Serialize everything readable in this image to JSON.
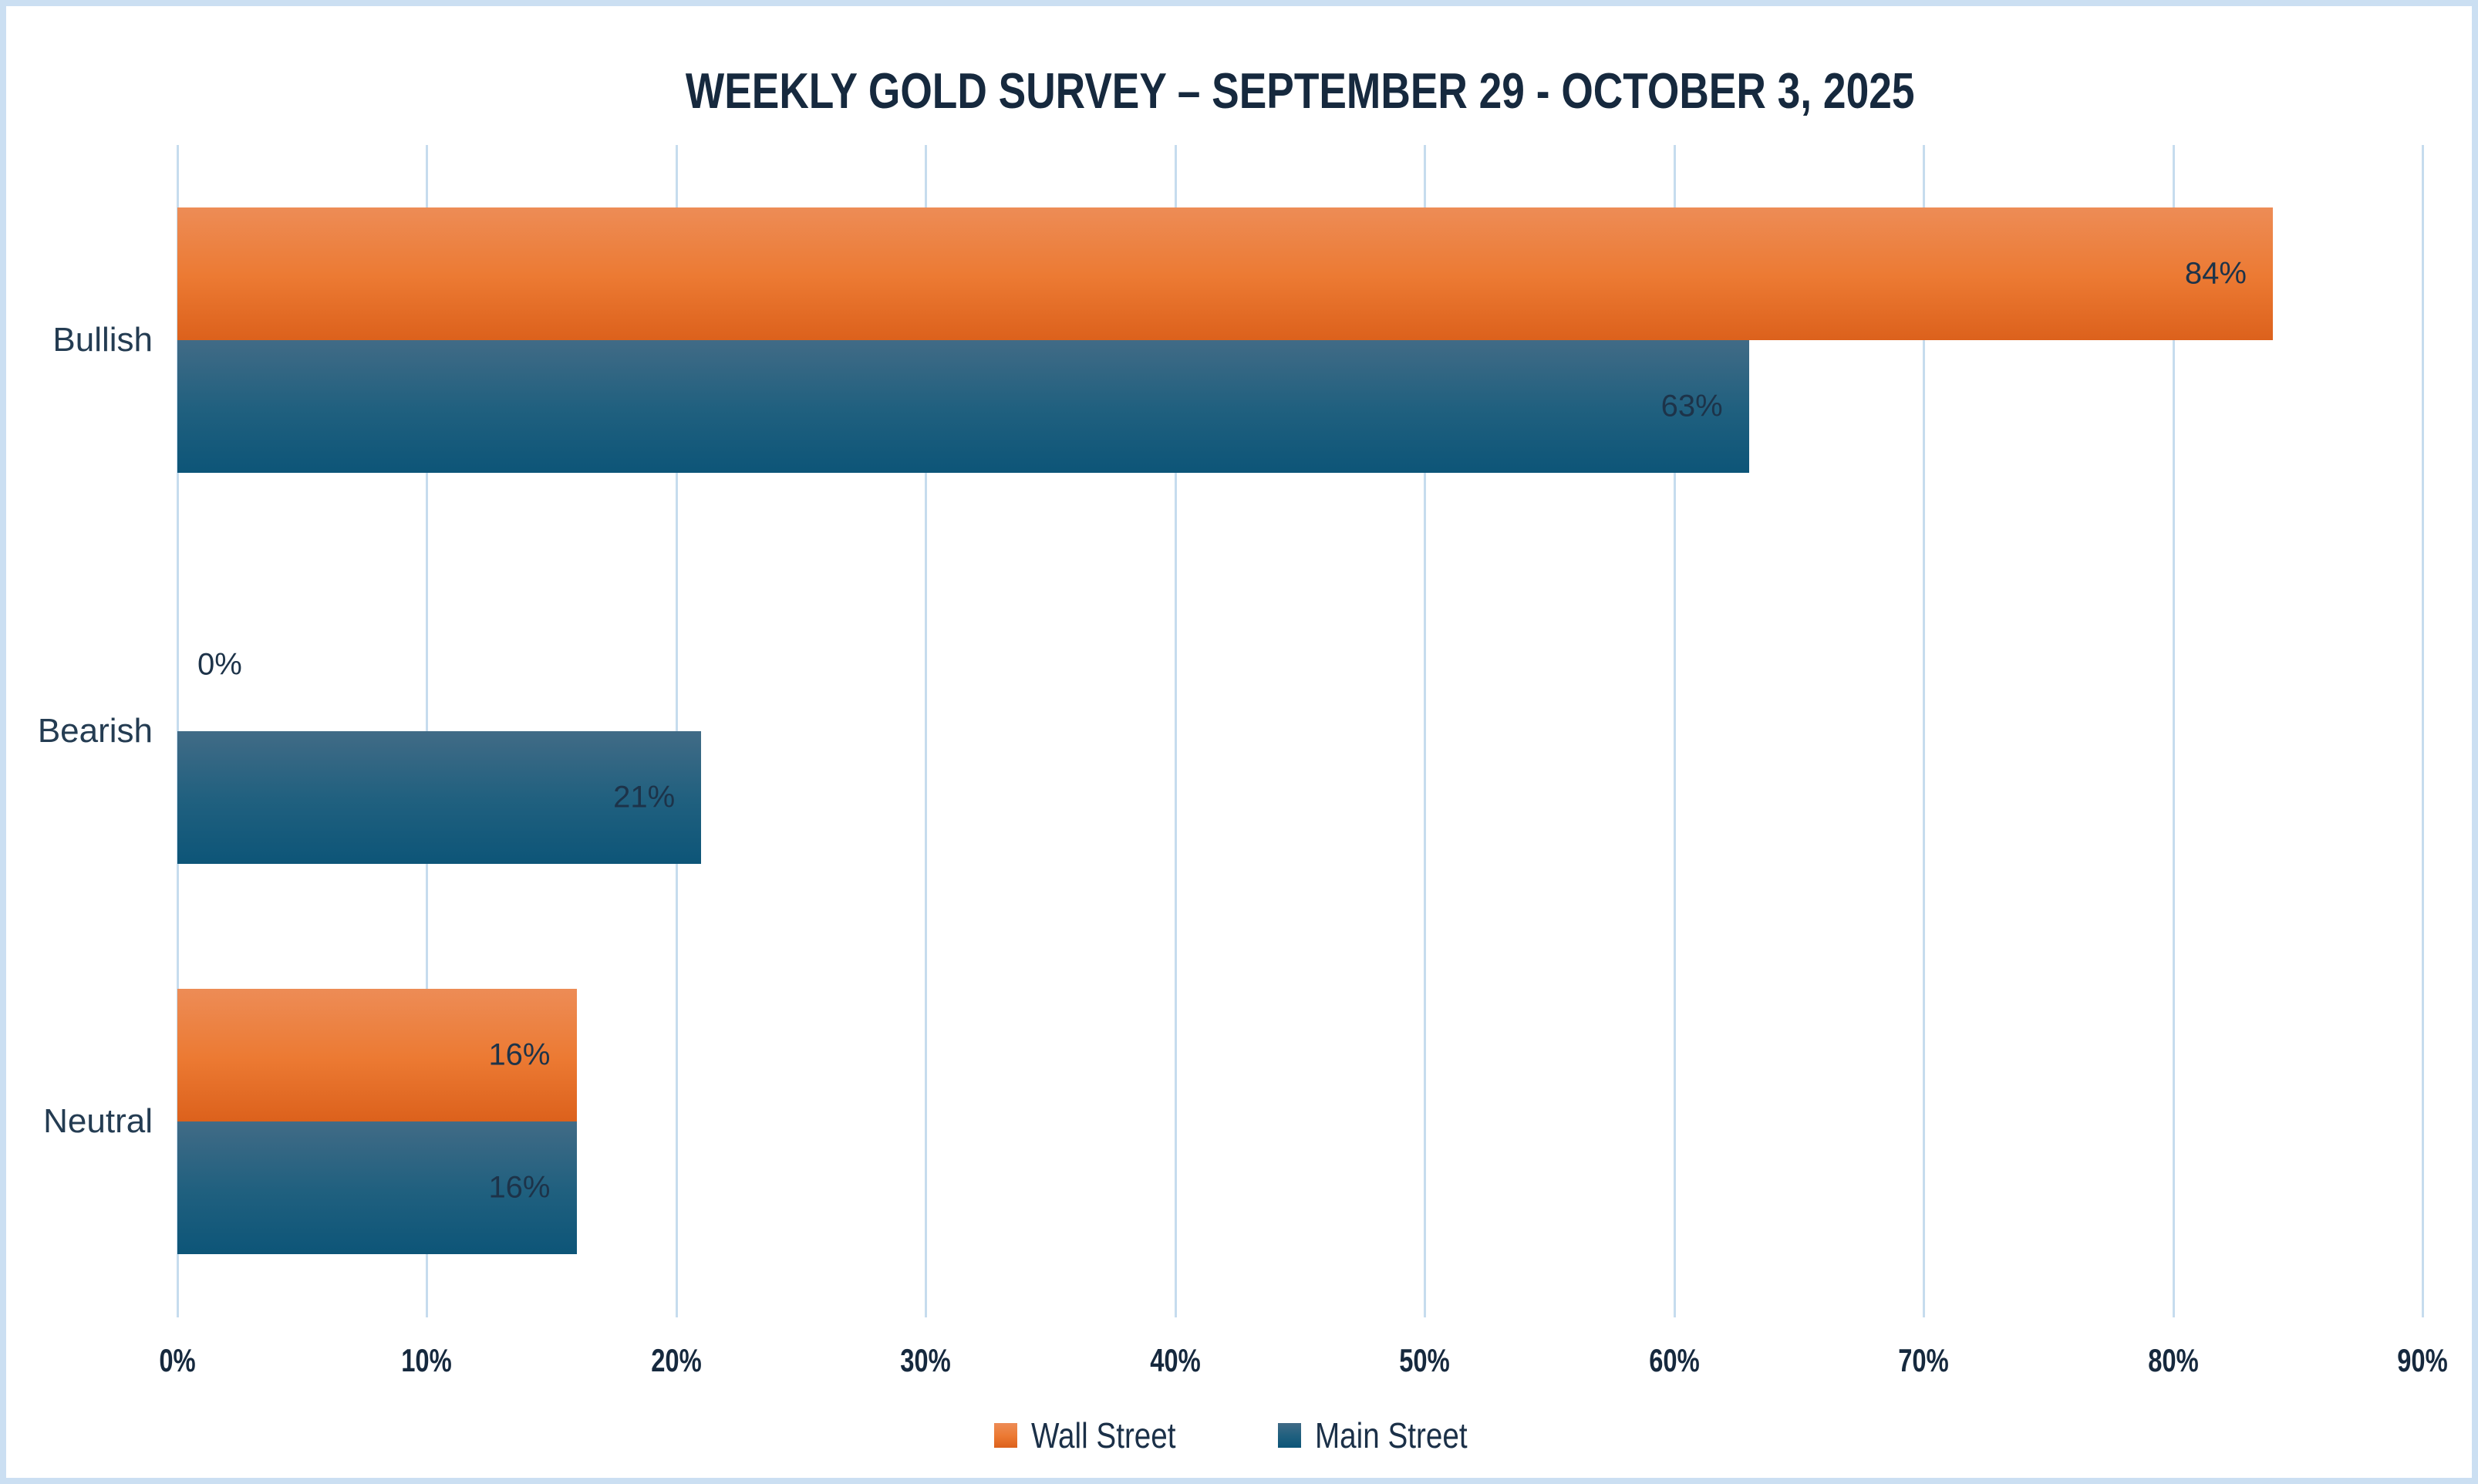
{
  "chart_data": {
    "type": "bar",
    "orientation": "horizontal",
    "title": "WEEKLY GOLD SURVEY – SEPTEMBER 29 - OCTOBER 3, 2025",
    "categories": [
      "Bullish",
      "Bearish",
      "Neutral"
    ],
    "series": [
      {
        "name": "Wall Street",
        "values": [
          84,
          0,
          16
        ],
        "color_top": "#ed8c56",
        "color_mid": "#ec7a33",
        "color_bottom": "#dc611c"
      },
      {
        "name": "Main Street",
        "values": [
          63,
          21,
          16
        ],
        "color_top": "#416b86",
        "color_mid": "#20607f",
        "color_bottom": "#0d5578"
      }
    ],
    "value_suffix": "%",
    "xlim": [
      0,
      90
    ],
    "x_ticks": [
      "0%",
      "10%",
      "20%",
      "30%",
      "40%",
      "50%",
      "60%",
      "70%",
      "80%",
      "90%"
    ],
    "grid": true,
    "legend_position": "bottom"
  },
  "colors": {
    "title_text": "#16293e",
    "data_label_text": "#1d3349",
    "category_label_text": "#243c52",
    "gridline": "#c6dcee",
    "page_border": "#cbdff2",
    "background": "#ffffff"
  }
}
